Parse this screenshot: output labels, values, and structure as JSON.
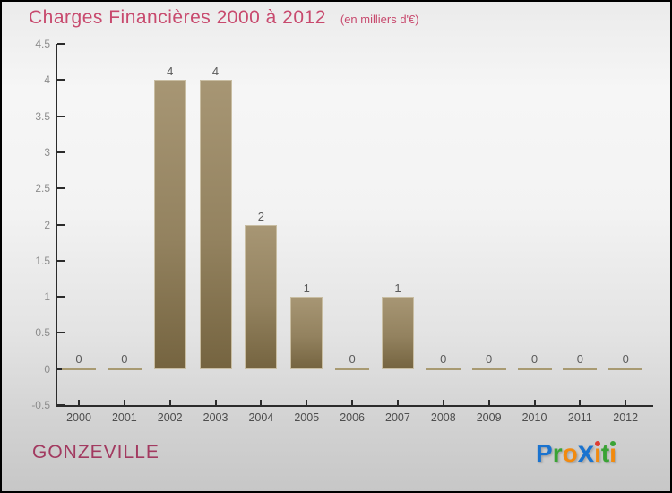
{
  "header": {
    "title": "Charges Financières 2000 à 2012",
    "subtitle": "(en milliers d'€)"
  },
  "chart_data": {
    "type": "bar",
    "title": "Charges Financières 2000 à 2012",
    "subtitle_units": "en milliers d'€",
    "categories": [
      "2000",
      "2001",
      "2002",
      "2003",
      "2004",
      "2005",
      "2006",
      "2007",
      "2008",
      "2009",
      "2010",
      "2011",
      "2012"
    ],
    "values": [
      0,
      0,
      4,
      4,
      2,
      1,
      0,
      1,
      0,
      0,
      0,
      0,
      0
    ],
    "value_labels": [
      "0",
      "0",
      "4",
      "4",
      "2",
      "1",
      "0",
      "1",
      "0",
      "0",
      "0",
      "0",
      "0"
    ],
    "xlabel": "",
    "ylabel": "",
    "ylim": [
      -0.5,
      4.5
    ],
    "yticks": [
      "4.5",
      "4",
      "3.5",
      "3",
      "2.5",
      "2",
      "1.5",
      "1",
      "0.5",
      "0",
      "-0.5"
    ],
    "grid": "off",
    "legend": "none",
    "bar_color_top": "#a79674",
    "bar_color_bottom": "#756440",
    "zero_marker_color": "#a89a72",
    "axis_color": "#2b2b2b",
    "ytick_label_color": "#8c8c8c",
    "xtick_label_color": "#4d4d4d",
    "value_label_color": "#5a5a5a"
  },
  "footer": {
    "location": "GONZEVILLE",
    "logo_text": "Proxiti",
    "logo_letters": [
      {
        "ch": "P",
        "color": "#1a73cf"
      },
      {
        "ch": "r",
        "color": "#3aa335"
      },
      {
        "ch": "o",
        "color": "#f28a0e"
      },
      {
        "ch": "x",
        "color": "#1a73cf",
        "big": true
      },
      {
        "ch": "i",
        "color": "#f28a0e",
        "dot": "#e03c31"
      },
      {
        "ch": "t",
        "color": "#3aa335"
      },
      {
        "ch": "i",
        "color": "#f28a0e",
        "dot": "#3aa335"
      }
    ]
  },
  "colors": {
    "title_pink": "#c84a6e",
    "location_maroon": "#a23a60"
  }
}
